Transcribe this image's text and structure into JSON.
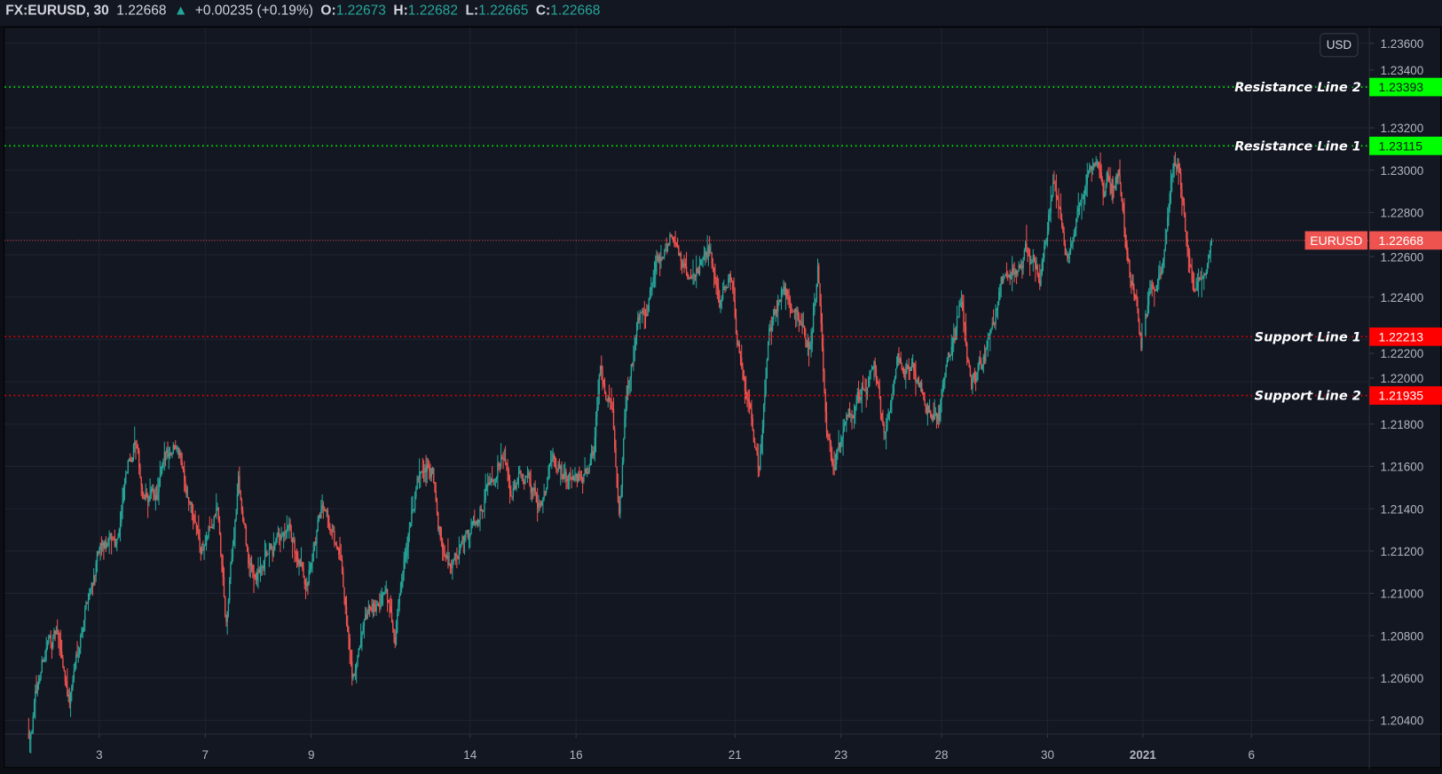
{
  "header": {
    "symbol": "FX:EURUSD, 30",
    "last": "1.22668",
    "change": "+0.00235 (+0.19%)",
    "o_label": "O:",
    "o": "1.22673",
    "h_label": "H:",
    "h": "1.22682",
    "l_label": "L:",
    "l": "1.22665",
    "c_label": "C:",
    "c": "1.22668",
    "change_icon": "triangle-up-icon"
  },
  "currency_button": "USD",
  "colors": {
    "background": "#131722",
    "up": "#26a69a",
    "down": "#ef5350",
    "resistance": "#00ff00",
    "support": "#ff0000",
    "grid": "#1f2330"
  },
  "chart_data": {
    "type": "candlestick",
    "symbol": "EURUSD",
    "interval": "30",
    "ylim": [
      1.203,
      1.237
    ],
    "y_ticks": [
      "1.23600",
      "1.23400",
      "1.23200",
      "1.23000",
      "1.22800",
      "1.22600",
      "1.22400",
      "1.22200",
      "1.22000",
      "1.21800",
      "1.21600",
      "1.21400",
      "1.21200",
      "1.21000",
      "1.20800",
      "1.20600",
      "1.20400"
    ],
    "x_ticks": [
      {
        "label": "3",
        "date": "2020-12-03"
      },
      {
        "label": "7",
        "date": "2020-12-07"
      },
      {
        "label": "9",
        "date": "2020-12-09"
      },
      {
        "label": "14",
        "date": "2020-12-14"
      },
      {
        "label": "16",
        "date": "2020-12-16"
      },
      {
        "label": "21",
        "date": "2020-12-21"
      },
      {
        "label": "23",
        "date": "2020-12-23"
      },
      {
        "label": "28",
        "date": "2020-12-28"
      },
      {
        "label": "30",
        "date": "2020-12-30"
      },
      {
        "label": "2021",
        "date": "2021-01-01"
      },
      {
        "label": "6",
        "date": "2021-01-06"
      }
    ],
    "grid": true,
    "current_price": {
      "label": "EURUSD",
      "value": "1.22668"
    },
    "horizontal_lines": [
      {
        "name": "Resistance Line 2",
        "value": "1.23393",
        "kind": "resistance"
      },
      {
        "name": "Resistance Line 1",
        "value": "1.23115",
        "kind": "resistance"
      },
      {
        "name": "Support Line 1",
        "value": "1.22213",
        "kind": "support"
      },
      {
        "name": "Support Line 2",
        "value": "1.21935",
        "kind": "support"
      }
    ],
    "price_path": [
      [
        "2020-12-01 16:00",
        1.2034
      ],
      [
        "2020-12-01 20:00",
        1.2056
      ],
      [
        "2020-12-02 00:00",
        1.2076
      ],
      [
        "2020-12-02 04:30",
        1.208
      ],
      [
        "2020-12-02 10:30",
        1.205
      ],
      [
        "2020-12-02 17:00",
        1.2093
      ],
      [
        "2020-12-02 23:00",
        1.2117
      ],
      [
        "2020-12-03 07:30",
        1.2124
      ],
      [
        "2020-12-03 11:30",
        1.215
      ],
      [
        "2020-12-03 16:00",
        1.2173
      ],
      [
        "2020-12-03 20:00",
        1.2143
      ],
      [
        "2020-12-04 02:00",
        1.2145
      ],
      [
        "2020-12-04 06:30",
        1.2163
      ],
      [
        "2020-12-04 11:30",
        1.2176
      ],
      [
        "2020-12-04 17:00",
        1.2145
      ],
      [
        "2020-12-04 22:00",
        1.2119
      ],
      [
        "2020-12-07 05:30",
        1.2139
      ],
      [
        "2020-12-07 09:30",
        1.2084
      ],
      [
        "2020-12-07 15:00",
        1.2154
      ],
      [
        "2020-12-07 20:00",
        1.211
      ],
      [
        "2020-12-08 02:00",
        1.211
      ],
      [
        "2020-12-08 08:30",
        1.2119
      ],
      [
        "2020-12-08 14:30",
        1.2124
      ],
      [
        "2020-12-08 21:00",
        1.2106
      ],
      [
        "2020-12-09 06:30",
        1.2145
      ],
      [
        "2020-12-09 13:30",
        1.211
      ],
      [
        "2020-12-09 18:30",
        1.2063
      ],
      [
        "2020-12-10 02:00",
        1.2084
      ],
      [
        "2020-12-10 08:30",
        1.2102
      ],
      [
        "2020-12-10 14:00",
        1.2084
      ],
      [
        "2020-12-10 19:00",
        1.2128
      ],
      [
        "2020-12-11 01:00",
        1.2154
      ],
      [
        "2020-12-11 07:00",
        1.2158
      ],
      [
        "2020-12-11 09:30",
        1.2128
      ],
      [
        "2020-12-11 15:30",
        1.2115
      ],
      [
        "2020-12-11 20:00",
        1.2119
      ],
      [
        "2020-12-14 02:00",
        1.2132
      ],
      [
        "2020-12-14 08:00",
        1.2154
      ],
      [
        "2020-12-14 14:30",
        1.2171
      ],
      [
        "2020-12-14 18:30",
        1.2145
      ],
      [
        "2020-12-15 01:00",
        1.2154
      ],
      [
        "2020-12-15 07:00",
        1.2141
      ],
      [
        "2020-12-15 13:30",
        1.2163
      ],
      [
        "2020-12-15 19:30",
        1.2154
      ],
      [
        "2020-12-16 02:00",
        1.2154
      ],
      [
        "2020-12-16 08:00",
        1.2167
      ],
      [
        "2020-12-16 11:00",
        1.2206
      ],
      [
        "2020-12-16 16:30",
        1.2189
      ],
      [
        "2020-12-16 19:30",
        1.2137
      ],
      [
        "2020-12-16 23:00",
        1.2193
      ],
      [
        "2020-12-17 05:00",
        1.2232
      ],
      [
        "2020-12-17 09:00",
        1.2241
      ],
      [
        "2020-12-17 15:30",
        1.2263
      ],
      [
        "2020-12-17 21:00",
        1.2271
      ],
      [
        "2020-12-18 04:00",
        1.2245
      ],
      [
        "2020-12-18 12:00",
        1.2258
      ],
      [
        "2020-12-18 17:00",
        1.2237
      ],
      [
        "2020-12-18 22:30",
        1.225
      ],
      [
        "2020-12-21 00:30",
        1.2223
      ],
      [
        "2020-12-21 05:30",
        1.2193
      ],
      [
        "2020-12-21 11:00",
        1.2158
      ],
      [
        "2020-12-21 15:30",
        1.2223
      ],
      [
        "2020-12-21 21:30",
        1.2245
      ],
      [
        "2020-12-22 04:00",
        1.2237
      ],
      [
        "2020-12-22 10:00",
        1.2215
      ],
      [
        "2020-12-22 13:30",
        1.2254
      ],
      [
        "2020-12-22 17:30",
        1.2176
      ],
      [
        "2020-12-22 20:30",
        1.2158
      ],
      [
        "2020-12-23 02:30",
        1.218
      ],
      [
        "2020-12-23 09:00",
        1.2193
      ],
      [
        "2020-12-23 15:00",
        1.221
      ],
      [
        "2020-12-23 19:30",
        1.2176
      ],
      [
        "2020-12-24 02:00",
        1.221
      ],
      [
        "2020-12-24 09:00",
        1.2206
      ],
      [
        "2020-12-24 15:30",
        1.2189
      ],
      [
        "2020-12-24 22:30",
        1.2184
      ],
      [
        "2020-12-28 03:00",
        1.221
      ],
      [
        "2020-12-28 09:00",
        1.2237
      ],
      [
        "2020-12-28 13:30",
        1.2197
      ],
      [
        "2020-12-28 19:30",
        1.221
      ],
      [
        "2020-12-29 02:00",
        1.2241
      ],
      [
        "2020-12-29 08:00",
        1.225
      ],
      [
        "2020-12-29 14:30",
        1.2263
      ],
      [
        "2020-12-29 20:30",
        1.225
      ],
      [
        "2020-12-30 02:30",
        1.2293
      ],
      [
        "2020-12-30 09:00",
        1.2258
      ],
      [
        "2020-12-30 15:00",
        1.2293
      ],
      [
        "2020-12-30 21:00",
        1.2306
      ],
      [
        "2020-12-31 02:00",
        1.2289
      ],
      [
        "2020-12-31 10:00",
        1.2297
      ],
      [
        "2020-12-31 15:00",
        1.2263
      ],
      [
        "2020-12-31 23:00",
        1.2219
      ],
      [
        "2021-01-04 02:00",
        1.2241
      ],
      [
        "2021-01-04 07:00",
        1.225
      ],
      [
        "2021-01-04 11:30",
        1.2297
      ],
      [
        "2021-01-04 15:00",
        1.2306
      ],
      [
        "2021-01-04 19:00",
        1.2263
      ],
      [
        "2021-01-04 22:00",
        1.2245
      ],
      [
        "2021-01-05 03:00",
        1.2258
      ],
      [
        "2021-01-05 06:00",
        1.22668
      ]
    ]
  }
}
